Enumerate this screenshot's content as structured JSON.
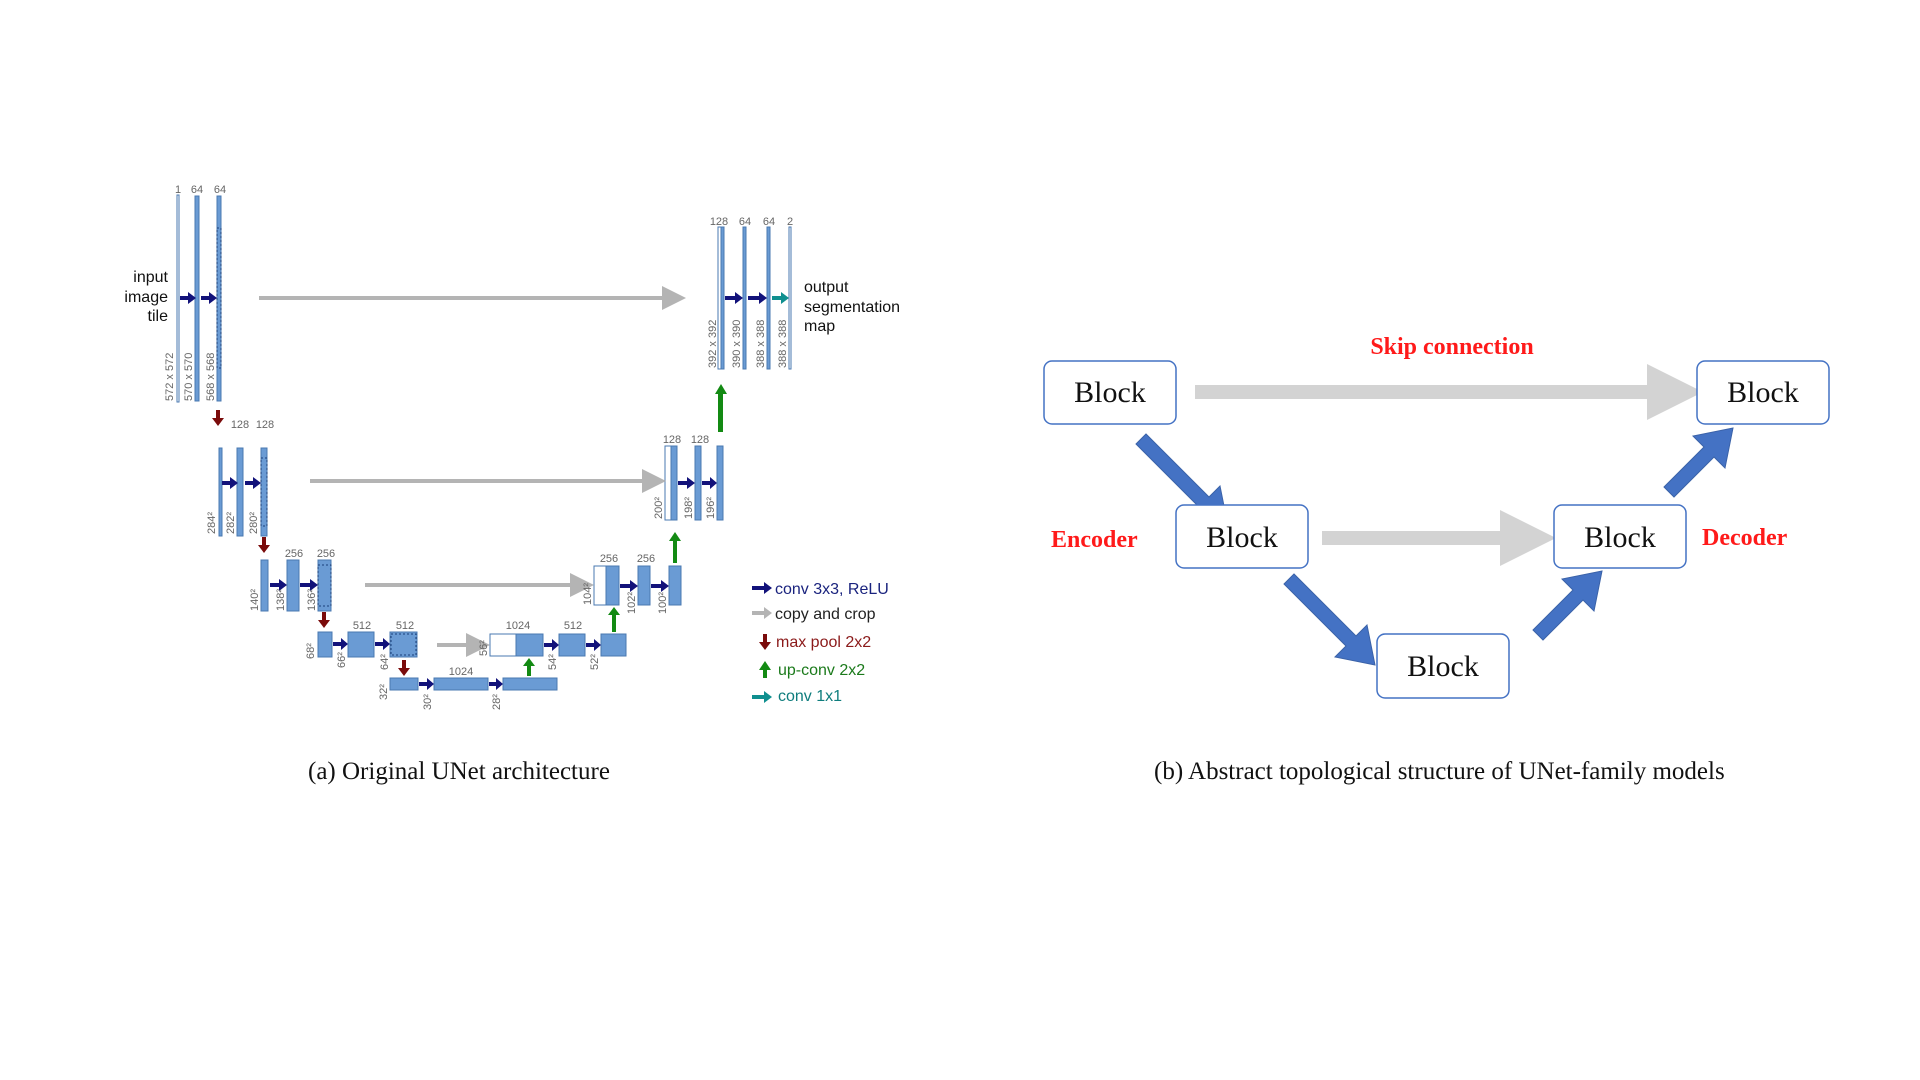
{
  "unet": {
    "channels": {
      "in": "1",
      "c1a": "64",
      "c1b": "64",
      "c2a": "128",
      "c2b": "128",
      "c3a": "256",
      "c3b": "256",
      "c4a": "512",
      "c4b": "512",
      "c5a": "1024",
      "u4in": "1024",
      "u4a": "512",
      "u4b": "512",
      "u3a": "256",
      "u3b": "256",
      "u2a": "128",
      "u2b": "128",
      "u1a": "128",
      "u1b": "64",
      "u1c": "64",
      "out": "2"
    },
    "sizes": {
      "l1": [
        "572 x 572",
        "570 x 570",
        "568 x 568"
      ],
      "l2": [
        "284²",
        "282²",
        "280²"
      ],
      "l3": [
        "140²",
        "138²",
        "136²"
      ],
      "l4": [
        "68²",
        "66²",
        "64²"
      ],
      "l5": [
        "32²",
        "30²",
        "28²"
      ],
      "u4": [
        "56²",
        "54²",
        "52²"
      ],
      "u3": [
        "104²",
        "102²",
        "100²"
      ],
      "u2": [
        "200²",
        "198²",
        "196²"
      ],
      "u1": [
        "392 x 392",
        "390 x 390",
        "388 x 388",
        "388 x 388"
      ]
    },
    "input_label": [
      "input",
      "image",
      "tile"
    ],
    "output_label": [
      "output",
      "segmentation",
      "map"
    ],
    "legend": [
      {
        "label": "conv 3x3, ReLU",
        "color": "#1a237e",
        "icon": "arrow-right-icon"
      },
      {
        "label": "copy and crop",
        "color": "#222222",
        "icon": "arrow-right-icon"
      },
      {
        "label": "max pool 2x2",
        "color": "#8b1a1a",
        "icon": "arrow-down-icon"
      },
      {
        "label": "up-conv 2x2",
        "color": "#1b7a1b",
        "icon": "arrow-up-icon"
      },
      {
        "label": "conv 1x1",
        "color": "#0f7d7d",
        "icon": "arrow-right-icon"
      }
    ],
    "colors": {
      "feature": "#6a9bd4",
      "feature_edge": "#4a78b0",
      "conv": "#12127a",
      "copy": "#b4b4b4",
      "pool": "#7a0b0b",
      "upconv": "#138a13",
      "conv1x1": "#0f8f8f"
    }
  },
  "abstract": {
    "block_label": "Block",
    "skip_label": "Skip connection",
    "encoder_label": "Encoder",
    "decoder_label": "Decoder",
    "colors": {
      "accent": "#ff1a1a",
      "arrow": "#4472c4",
      "skip": "#d3d3d3",
      "border": "#4472c4"
    }
  },
  "captions": {
    "a": "(a)  Original UNet architecture",
    "b": "(b) Abstract topological structure of UNet-family models"
  }
}
